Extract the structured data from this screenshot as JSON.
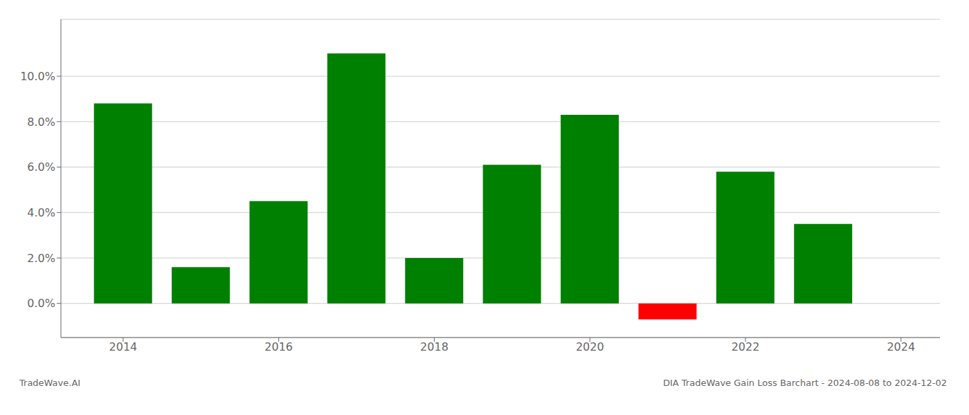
{
  "chart_data": {
    "type": "bar",
    "title": "DIA TradeWave Gain Loss Barchart - 2024-08-08 to 2024-12-02",
    "annotations": [
      "TradeWave.AI"
    ],
    "x": [
      2014,
      2015,
      2016,
      2017,
      2018,
      2019,
      2020,
      2021,
      2022,
      2023
    ],
    "values": [
      0.088,
      0.016,
      0.045,
      0.11,
      0.02,
      0.061,
      0.083,
      -0.007,
      0.058,
      0.035
    ],
    "colors": [
      "#008000",
      "#008000",
      "#008000",
      "#008000",
      "#008000",
      "#008000",
      "#008000",
      "#ff0000",
      "#008000",
      "#008000"
    ],
    "xlim": [
      2013.2,
      2024.5
    ],
    "xticks": [
      2014,
      2016,
      2018,
      2020,
      2022,
      2024
    ],
    "ylim": [
      -0.015,
      0.125
    ],
    "yticks": [
      {
        "value": 0.0,
        "label": "0.0%"
      },
      {
        "value": 0.02,
        "label": "2.0%"
      },
      {
        "value": 0.04,
        "label": "4.0%"
      },
      {
        "value": 0.06,
        "label": "6.0%"
      },
      {
        "value": 0.08,
        "label": "8.0%"
      },
      {
        "value": 0.1,
        "label": "10.0%"
      }
    ],
    "grid": true
  }
}
